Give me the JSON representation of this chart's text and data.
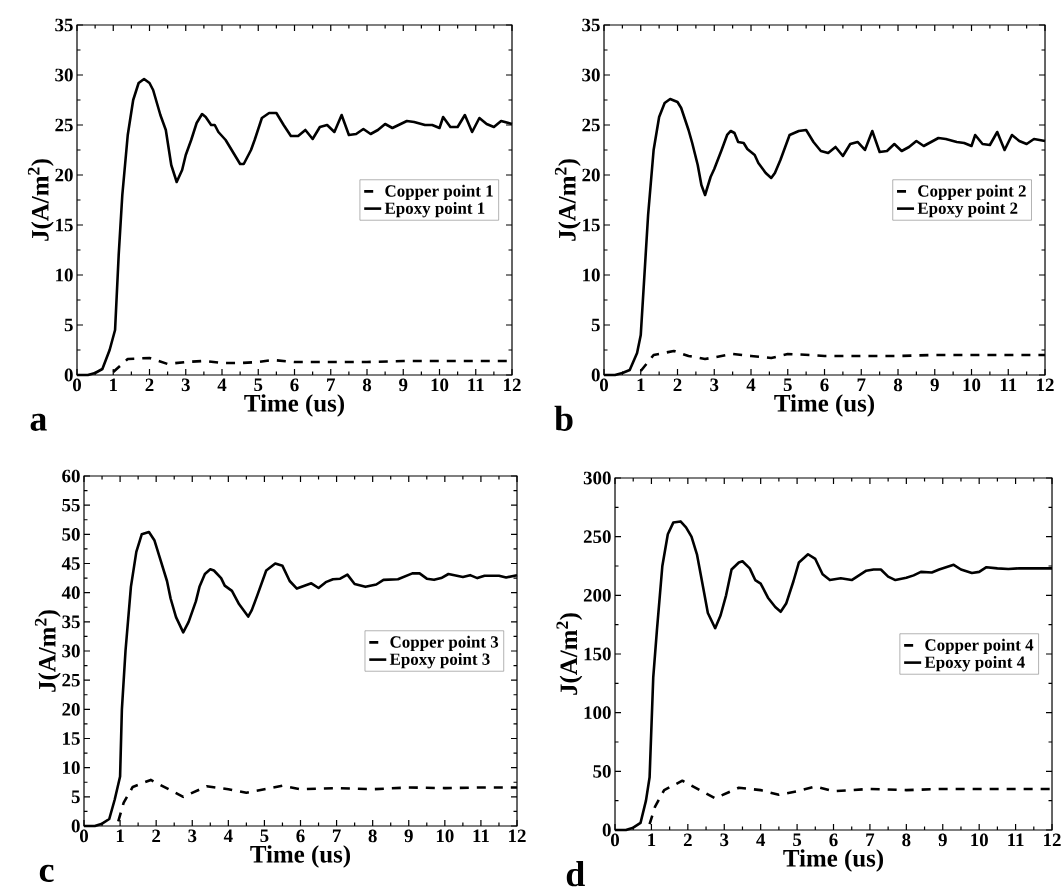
{
  "chart_data": [
    {
      "type": "line",
      "xlabel": "Time (us)",
      "ylabel": "J(A/m$^{2}$)",
      "annotations": [
        "a"
      ],
      "xlim": [
        0,
        12
      ],
      "ylim": [
        0,
        35
      ],
      "xticks": [
        0,
        1,
        2,
        3,
        4,
        5,
        6,
        7,
        8,
        9,
        10,
        11,
        12
      ],
      "yticks": [
        0,
        5,
        10,
        15,
        20,
        25,
        30,
        35
      ],
      "legend": "right",
      "marker": "none",
      "series": [
        {
          "name": "Copper point 1",
          "color": "#000000",
          "line_style": "dashed",
          "x": [
            1.0,
            1.4,
            2.0,
            2.5,
            3.0,
            3.5,
            4.0,
            4.5,
            5.0,
            5.4,
            6.0,
            7,
            8,
            9,
            10,
            11,
            12
          ],
          "values": [
            0.3,
            1.6,
            1.7,
            1.1,
            1.3,
            1.4,
            1.2,
            1.2,
            1.3,
            1.5,
            1.3,
            1.3,
            1.3,
            1.4,
            1.4,
            1.4,
            1.4
          ]
        },
        {
          "name": "Epoxy point 1",
          "color": "#000000",
          "line_style": "solid",
          "x": [
            0,
            0.3,
            0.5,
            0.7,
            0.9,
            1.05,
            1.15,
            1.25,
            1.4,
            1.55,
            1.7,
            1.85,
            2.0,
            2.1,
            2.3,
            2.45,
            2.6,
            2.75,
            2.9,
            3.0,
            3.15,
            3.3,
            3.45,
            3.55,
            3.7,
            3.8,
            3.9,
            4.1,
            4.3,
            4.5,
            4.6,
            4.8,
            4.9,
            5.1,
            5.3,
            5.5,
            5.7,
            5.9,
            6.1,
            6.3,
            6.5,
            6.7,
            6.9,
            7.1,
            7.3,
            7.5,
            7.7,
            7.9,
            8.1,
            8.3,
            8.5,
            8.7,
            9.1,
            9.3,
            9.6,
            9.8,
            10,
            10.1,
            10.3,
            10.5,
            10.7,
            10.9,
            11.1,
            11.3,
            11.5,
            11.7,
            12
          ],
          "values": [
            0,
            0,
            0.2,
            0.6,
            2.5,
            4.5,
            12,
            18,
            24,
            27.5,
            29.2,
            29.6,
            29.2,
            28.5,
            26,
            24.5,
            21,
            19.3,
            20.5,
            22,
            23.5,
            25.2,
            26.1,
            25.8,
            25,
            25,
            24.3,
            23.5,
            22.3,
            21.1,
            21.1,
            22.5,
            23.5,
            25.7,
            26.2,
            26.2,
            25,
            23.9,
            23.9,
            24.5,
            23.6,
            24.8,
            25,
            24.3,
            26,
            24,
            24.1,
            24.6,
            24.1,
            24.5,
            25.1,
            24.7,
            25.4,
            25.3,
            25,
            25,
            24.7,
            25.8,
            24.8,
            24.8,
            26,
            24.3,
            25.7,
            25.1,
            24.8,
            25.4,
            25.1
          ]
        }
      ]
    },
    {
      "type": "line",
      "xlabel": "Time (us)",
      "ylabel": "J(A/m$^{2}$)",
      "annotations": [
        "b"
      ],
      "xlim": [
        0,
        12
      ],
      "ylim": [
        0,
        35
      ],
      "xticks": [
        0,
        1,
        2,
        3,
        4,
        5,
        6,
        7,
        8,
        9,
        10,
        11,
        12
      ],
      "yticks": [
        0,
        5,
        10,
        15,
        20,
        25,
        30,
        35
      ],
      "legend": "right",
      "marker": "none",
      "series": [
        {
          "name": "Copper point 2",
          "color": "#000000",
          "line_style": "dashed",
          "x": [
            1.0,
            1.35,
            1.9,
            2.3,
            2.75,
            3.5,
            4.0,
            4.55,
            5.0,
            5.6,
            6,
            7,
            8,
            9,
            10,
            11,
            12
          ],
          "values": [
            0.4,
            2,
            2.4,
            1.9,
            1.6,
            2.1,
            1.9,
            1.7,
            2.1,
            2.0,
            1.9,
            1.9,
            1.9,
            2.0,
            2.0,
            2.0,
            2.0
          ]
        },
        {
          "name": "Epoxy point 2",
          "color": "#000000",
          "line_style": "solid",
          "x": [
            0,
            0.3,
            0.5,
            0.7,
            0.9,
            1.0,
            1.1,
            1.2,
            1.35,
            1.5,
            1.65,
            1.8,
            2.0,
            2.1,
            2.3,
            2.4,
            2.55,
            2.65,
            2.75,
            2.9,
            3.0,
            3.2,
            3.35,
            3.45,
            3.55,
            3.65,
            3.8,
            3.9,
            4.1,
            4.2,
            4.4,
            4.55,
            4.65,
            4.8,
            4.9,
            5.05,
            5.3,
            5.5,
            5.7,
            5.9,
            6.1,
            6.3,
            6.5,
            6.7,
            6.9,
            7.1,
            7.3,
            7.5,
            7.7,
            7.9,
            8.1,
            8.3,
            8.5,
            8.7,
            9.1,
            9.3,
            9.6,
            9.8,
            10,
            10.1,
            10.3,
            10.5,
            10.7,
            10.9,
            11.1,
            11.3,
            11.5,
            11.7,
            12
          ],
          "values": [
            0,
            0,
            0.2,
            0.5,
            2.2,
            4,
            10,
            16,
            22.5,
            25.8,
            27.2,
            27.6,
            27.3,
            26.7,
            24.5,
            23.2,
            21,
            19,
            18,
            19.8,
            20.6,
            22.5,
            24,
            24.4,
            24.2,
            23.3,
            23.2,
            22.6,
            22,
            21.2,
            20.2,
            19.7,
            20.2,
            21.5,
            22.5,
            24,
            24.4,
            24.5,
            23.3,
            22.4,
            22.2,
            22.8,
            21.9,
            23.1,
            23.3,
            22.5,
            24.4,
            22.3,
            22.4,
            23.1,
            22.4,
            22.8,
            23.4,
            22.9,
            23.7,
            23.6,
            23.3,
            23.2,
            22.9,
            24,
            23.1,
            23,
            24.3,
            22.5,
            24,
            23.4,
            23.1,
            23.6,
            23.4
          ]
        }
      ]
    },
    {
      "type": "line",
      "xlabel": "Time (us)",
      "ylabel": "J(A/m$^{2}$)",
      "annotations": [
        "c"
      ],
      "xlim": [
        0,
        12
      ],
      "ylim": [
        0,
        60
      ],
      "xticks": [
        0,
        1,
        2,
        3,
        4,
        5,
        6,
        7,
        8,
        9,
        10,
        11,
        12
      ],
      "yticks": [
        0,
        5,
        10,
        15,
        20,
        25,
        30,
        35,
        40,
        45,
        50,
        55,
        60
      ],
      "legend": "right",
      "marker": "none",
      "series": [
        {
          "name": "Copper point 3",
          "color": "#000000",
          "line_style": "dashed",
          "x": [
            0.95,
            1.1,
            1.35,
            1.85,
            2.75,
            3.4,
            4.0,
            4.5,
            5.0,
            5.5,
            6,
            7,
            8,
            9,
            10,
            11,
            12
          ],
          "values": [
            0.8,
            4,
            6.7,
            7.9,
            5,
            6.8,
            6.3,
            5.7,
            6.3,
            6.9,
            6.3,
            6.5,
            6.3,
            6.6,
            6.5,
            6.6,
            6.6
          ]
        },
        {
          "name": "Epoxy point 3",
          "color": "#000000",
          "line_style": "solid",
          "x": [
            0,
            0.3,
            0.5,
            0.7,
            0.85,
            1.0,
            1.05,
            1.15,
            1.3,
            1.45,
            1.6,
            1.8,
            1.95,
            2.1,
            2.3,
            2.4,
            2.55,
            2.75,
            2.9,
            3.1,
            3.2,
            3.35,
            3.5,
            3.6,
            3.8,
            3.9,
            4.1,
            4.3,
            4.55,
            4.65,
            4.8,
            5.05,
            5.3,
            5.5,
            5.7,
            5.9,
            6.3,
            6.5,
            6.7,
            6.9,
            7.1,
            7.3,
            7.5,
            7.8,
            8.1,
            8.3,
            8.7,
            9.1,
            9.3,
            9.5,
            9.7,
            9.9,
            10.1,
            10.5,
            10.7,
            10.9,
            11.1,
            11.5,
            11.7,
            12
          ],
          "values": [
            0,
            0,
            0.4,
            1.2,
            4.5,
            8.5,
            20,
            30,
            41,
            47,
            50,
            50.4,
            49,
            46,
            42,
            39,
            35.8,
            33.2,
            35,
            38.5,
            41,
            43.2,
            44,
            43.8,
            42.5,
            41.2,
            40.3,
            38,
            35.9,
            37,
            39.5,
            43.8,
            45,
            44.6,
            42,
            40.7,
            41.6,
            40.8,
            41.8,
            42.3,
            42.4,
            43.1,
            41.5,
            41,
            41.4,
            42.2,
            42.3,
            43.3,
            43.3,
            42.4,
            42.2,
            42.5,
            43.2,
            42.7,
            43,
            42.5,
            42.9,
            42.9,
            42.6,
            43
          ]
        }
      ]
    },
    {
      "type": "line",
      "xlabel": "Time (us)",
      "ylabel": "J(A/m$^{2}$)",
      "annotations": [
        "d"
      ],
      "xlim": [
        0,
        12
      ],
      "ylim": [
        0,
        300
      ],
      "xticks": [
        0,
        1,
        2,
        3,
        4,
        5,
        6,
        7,
        8,
        9,
        10,
        11,
        12
      ],
      "yticks": [
        0,
        50,
        100,
        150,
        200,
        250,
        300
      ],
      "legend": "right",
      "marker": "none",
      "series": [
        {
          "name": "Copper point 4",
          "color": "#000000",
          "line_style": "dashed",
          "x": [
            0.95,
            1.1,
            1.35,
            1.85,
            2.75,
            3.4,
            4.0,
            4.5,
            5,
            5.5,
            6,
            7,
            8,
            9,
            10,
            11,
            12
          ],
          "values": [
            5,
            20,
            34,
            42,
            27,
            36,
            34,
            30,
            33,
            37,
            33,
            35,
            34,
            35,
            35,
            35,
            35
          ]
        },
        {
          "name": "Epoxy point 4",
          "color": "#000000",
          "line_style": "solid",
          "x": [
            0,
            0.3,
            0.5,
            0.7,
            0.85,
            0.95,
            1.05,
            1.15,
            1.3,
            1.45,
            1.6,
            1.8,
            1.95,
            2.1,
            2.25,
            2.4,
            2.55,
            2.75,
            2.9,
            3.05,
            3.2,
            3.4,
            3.5,
            3.7,
            3.85,
            4.0,
            4.2,
            4.4,
            4.55,
            4.7,
            4.9,
            5.05,
            5.3,
            5.5,
            5.7,
            5.9,
            6.2,
            6.5,
            6.7,
            6.9,
            7.1,
            7.3,
            7.5,
            7.7,
            8.0,
            8.2,
            8.4,
            8.7,
            8.9,
            9.3,
            9.5,
            9.8,
            10.0,
            10.2,
            10.5,
            10.8,
            11.1,
            12
          ],
          "values": [
            0,
            0,
            2,
            6,
            25,
            45,
            130,
            170,
            225,
            252,
            262,
            263,
            258,
            250,
            235,
            210,
            185,
            172,
            183,
            200,
            222,
            228,
            229,
            223,
            213,
            210,
            198,
            190,
            186,
            193,
            212,
            228,
            235,
            231,
            218,
            213,
            214.5,
            213,
            217,
            221,
            222,
            222,
            216,
            213,
            215,
            217,
            220,
            219.5,
            222,
            226,
            222,
            219,
            220,
            224,
            223,
            222.5,
            223,
            223
          ]
        }
      ]
    }
  ]
}
